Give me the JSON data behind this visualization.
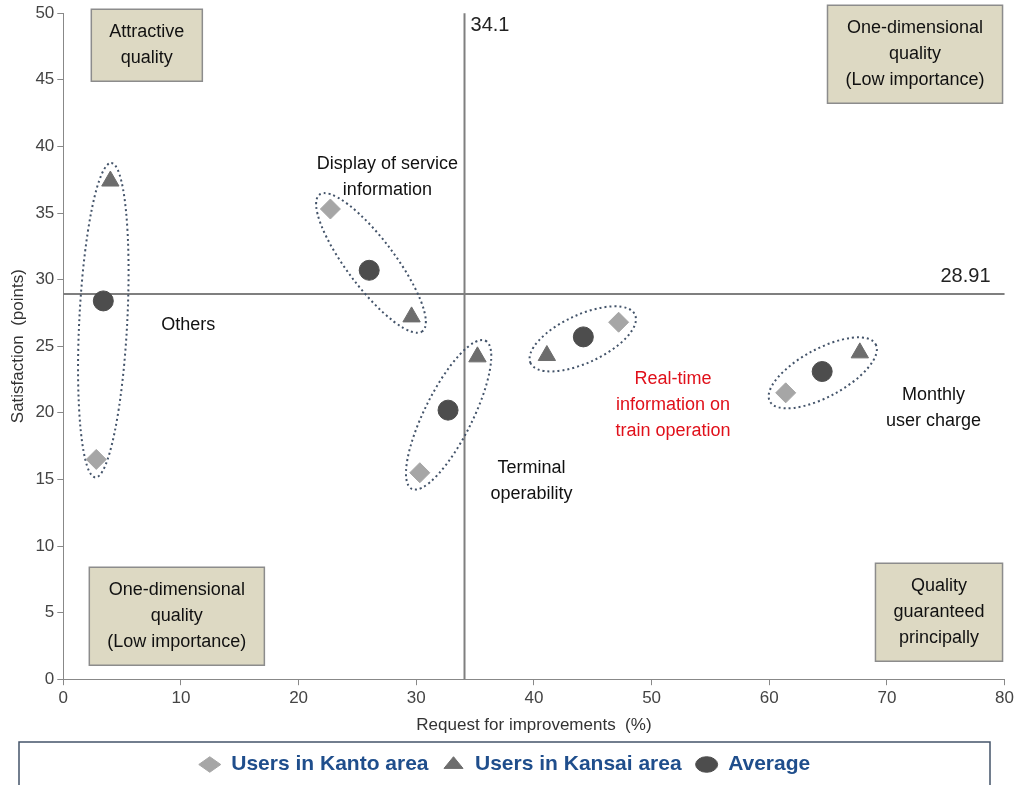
{
  "chart_data": {
    "type": "scatter",
    "xlabel": "Request for improvements  (%)",
    "ylabel": "Satisfaction  (points)",
    "xlim": [
      0,
      80
    ],
    "xticks": [
      0,
      10,
      20,
      30,
      40,
      50,
      60,
      70,
      80
    ],
    "ylim": [
      0,
      50
    ],
    "yticks": [
      0,
      5,
      10,
      15,
      20,
      25,
      30,
      35,
      40,
      45,
      50
    ],
    "grid": false,
    "legend": "bottom",
    "series": [
      {
        "name": "Users in Kanto area",
        "color": "#a6a6a6",
        "marker": "diamond",
        "x": [
          2.8,
          22.7,
          30.3,
          47.2,
          61.4
        ],
        "values": [
          16.5,
          35.3,
          15.5,
          26.8,
          21.5
        ]
      },
      {
        "name": "Users in Kansai area",
        "color": "#6d6d6d",
        "marker": "triangle",
        "x": [
          4.0,
          29.6,
          35.2,
          41.1,
          67.7
        ],
        "values": [
          37.4,
          27.2,
          24.2,
          24.3,
          24.5
        ]
      },
      {
        "name": "Average",
        "color": "#4d4d4d",
        "marker": "circle",
        "x": [
          3.4,
          26.0,
          32.7,
          44.2,
          64.5
        ],
        "values": [
          28.4,
          30.7,
          20.2,
          25.7,
          23.1
        ]
      }
    ],
    "ref_lines": [
      {
        "axis": "x",
        "value": 34.1,
        "label": "34.1",
        "color": "#7f7f7f"
      },
      {
        "axis": "y",
        "value": 28.91,
        "label": "28.91",
        "color": "#7f7f7f"
      }
    ],
    "annotations": [
      "Others",
      "Display of service\ninformation",
      "Terminal\noperability",
      "Real-time\ninformation on\ntrain operation",
      "Monthly\nuser charge",
      "Attractive\nquality",
      "One-dimensional\nquality\n(Low importance)",
      "One-dimensional\nquality\n(Low importance)",
      "Quality\nguaranteed\nprincipally"
    ]
  }
}
